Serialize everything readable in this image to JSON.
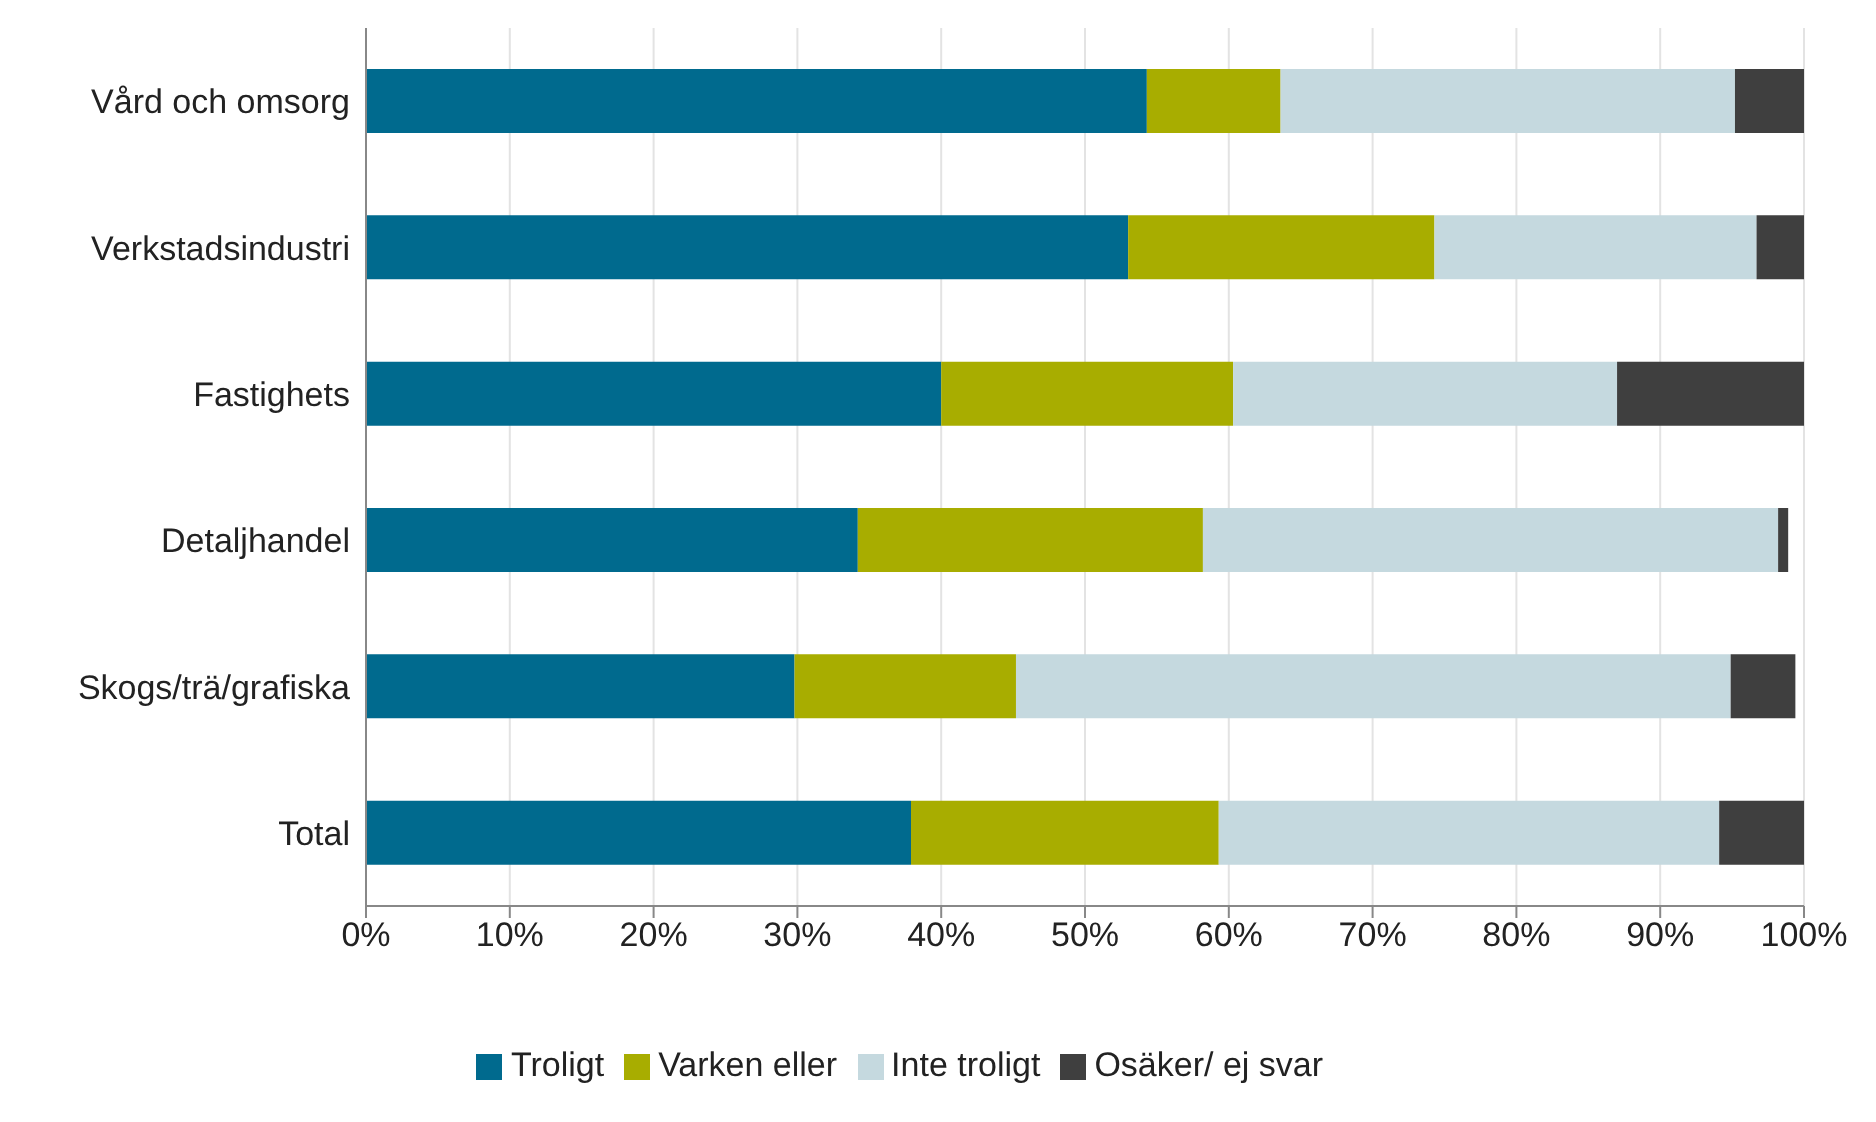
{
  "chart_data": {
    "type": "bar",
    "orientation": "horizontal",
    "stacked": true,
    "categories": [
      "Vård och omsorg",
      "Verkstadsindustri",
      "Fastighets",
      "Detaljhandel",
      "Skogs/trä/grafiska",
      "Total"
    ],
    "series": [
      {
        "name": "Troligt",
        "color": "#006a8e",
        "values": [
          54.3,
          53.0,
          40.0,
          34.2,
          29.8,
          37.9
        ]
      },
      {
        "name": "Varken eller",
        "color": "#a8ad00",
        "values": [
          9.3,
          21.3,
          20.3,
          24.0,
          15.4,
          21.4
        ]
      },
      {
        "name": "Inte troligt",
        "color": "#c5d9df",
        "values": [
          31.6,
          22.4,
          26.7,
          40.0,
          49.7,
          34.8
        ]
      },
      {
        "name": "Osäker/ ej svar",
        "color": "#3f3f3f",
        "values": [
          4.8,
          3.3,
          13.0,
          0.7,
          4.5,
          5.9
        ]
      }
    ],
    "xlim": [
      0,
      100
    ],
    "xticks": [
      {
        "value": 0,
        "label": "0%"
      },
      {
        "value": 10,
        "label": "10%"
      },
      {
        "value": 20,
        "label": "20%"
      },
      {
        "value": 30,
        "label": "30%"
      },
      {
        "value": 40,
        "label": "40%"
      },
      {
        "value": 50,
        "label": "50%"
      },
      {
        "value": 60,
        "label": "60%"
      },
      {
        "value": 70,
        "label": "70%"
      },
      {
        "value": 80,
        "label": "80%"
      },
      {
        "value": 90,
        "label": "90%"
      },
      {
        "value": 100,
        "label": "100%"
      }
    ],
    "grid": "x",
    "legend": "bottom"
  }
}
